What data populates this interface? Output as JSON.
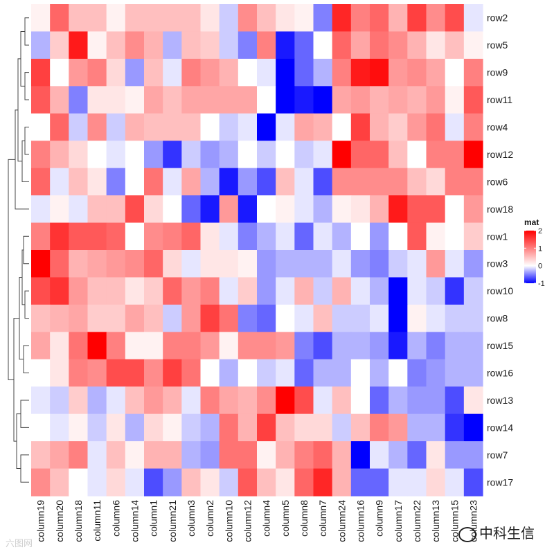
{
  "chart_data": {
    "type": "heatmap",
    "rows": [
      "row2",
      "row5",
      "row9",
      "row11",
      "row4",
      "row12",
      "row6",
      "row18",
      "row1",
      "row3",
      "row10",
      "row8",
      "row15",
      "row16",
      "row13",
      "row14",
      "row7",
      "row17"
    ],
    "columns": [
      "column19",
      "column20",
      "column18",
      "column11",
      "column6",
      "column14",
      "column1",
      "column21",
      "column3",
      "column2",
      "column10",
      "column12",
      "column4",
      "column5",
      "column8",
      "column7",
      "column24",
      "column16",
      "column9",
      "column17",
      "column22",
      "column13",
      "column15",
      "column23"
    ],
    "values": [
      [
        0.1,
        1.2,
        0.5,
        0.5,
        0.1,
        0.5,
        0.5,
        0.5,
        0.5,
        0.2,
        -0.2,
        0.9,
        0.5,
        0.2,
        0.1,
        -0.5,
        1.7,
        1.0,
        1.2,
        0.6,
        1.5,
        0.9,
        1.4,
        -0.1
      ],
      [
        -0.3,
        0.4,
        1.8,
        0.1,
        0.5,
        0.9,
        0.6,
        -0.3,
        0.5,
        0.4,
        -0.2,
        -0.5,
        1.0,
        -0.9,
        -0.6,
        0.0,
        1.2,
        0.7,
        1.1,
        0.9,
        0.6,
        0.2,
        0.5,
        0.1
      ],
      [
        1.5,
        0.0,
        0.8,
        1.0,
        0.3,
        -0.4,
        0.5,
        -0.1,
        1.0,
        0.8,
        0.6,
        0.0,
        -0.1,
        -1.0,
        -0.6,
        -0.3,
        1.0,
        1.8,
        1.9,
        0.8,
        0.9,
        0.7,
        0.0,
        1.0
      ],
      [
        1.3,
        0.6,
        -0.5,
        0.2,
        0.2,
        0.1,
        0.7,
        0.5,
        0.7,
        0.7,
        0.7,
        0.7,
        0.0,
        -1.6,
        -0.9,
        -1.3,
        0.7,
        0.8,
        0.6,
        0.7,
        0.6,
        0.8,
        0.1,
        1.3
      ],
      [
        0.0,
        1.2,
        -0.2,
        0.9,
        -0.2,
        0.6,
        0.5,
        0.5,
        0.5,
        0.0,
        -0.2,
        -0.1,
        -1.5,
        -0.1,
        0.7,
        0.6,
        0.0,
        1.5,
        0.6,
        0.4,
        0.8,
        1.1,
        -0.1,
        1.0
      ],
      [
        1.0,
        0.6,
        0.3,
        0.0,
        -0.1,
        0.0,
        -0.4,
        -0.8,
        -0.2,
        -0.4,
        -0.3,
        0.0,
        -0.2,
        0.0,
        -0.2,
        -0.1,
        2.0,
        1.2,
        1.2,
        0.5,
        0.0,
        1.0,
        1.0,
        2.0
      ],
      [
        1.2,
        -0.1,
        0.5,
        0.2,
        -0.5,
        0.0,
        1.1,
        -0.1,
        0.7,
        -0.3,
        -0.9,
        -0.4,
        -0.7,
        0.5,
        -0.1,
        -0.7,
        0.9,
        0.9,
        0.9,
        0.9,
        0.5,
        0.3,
        1.0,
        1.0
      ],
      [
        -0.1,
        0.1,
        -0.1,
        0.5,
        0.5,
        1.4,
        0.3,
        0.0,
        -0.6,
        -0.9,
        0.8,
        -0.9,
        0.0,
        0.1,
        -0.1,
        -0.3,
        0.1,
        0.2,
        0.6,
        1.8,
        1.3,
        1.3,
        0.0,
        0.8
      ],
      [
        1.0,
        1.6,
        1.3,
        1.3,
        1.2,
        0.0,
        0.9,
        1.0,
        1.2,
        0.2,
        -0.1,
        -0.5,
        -0.3,
        -0.1,
        -0.6,
        -0.1,
        -0.3,
        0.0,
        -0.4,
        0.0,
        1.3,
        0.1,
        0.0,
        0.4
      ],
      [
        2.0,
        1.2,
        0.6,
        0.7,
        0.8,
        0.9,
        1.2,
        0.3,
        -0.1,
        0.2,
        0.2,
        0.1,
        -0.4,
        -0.3,
        -0.3,
        -0.3,
        -0.1,
        -0.4,
        -0.5,
        -0.2,
        -0.1,
        0.8,
        -0.1,
        -0.4
      ],
      [
        1.4,
        1.6,
        0.8,
        0.5,
        0.5,
        0.2,
        0.4,
        1.2,
        0.8,
        1.0,
        -0.1,
        0.4,
        -0.4,
        -0.1,
        0.6,
        -0.2,
        0.6,
        -0.1,
        -0.3,
        -1.6,
        -0.1,
        -0.2,
        -0.8,
        -0.2
      ],
      [
        0.5,
        0.6,
        0.7,
        0.4,
        0.4,
        0.7,
        0.5,
        -0.2,
        0.8,
        1.5,
        1.1,
        -0.5,
        -0.6,
        0.0,
        -0.1,
        0.5,
        -0.2,
        -0.2,
        -0.1,
        -1.6,
        0.1,
        -0.1,
        -0.2,
        -0.2
      ],
      [
        0.7,
        0.2,
        1.1,
        2.0,
        1.0,
        0.1,
        0.1,
        1.0,
        1.0,
        0.8,
        0.1,
        0.9,
        0.9,
        0.8,
        -0.5,
        -0.7,
        -0.3,
        -0.3,
        -0.4,
        -0.9,
        -0.3,
        -0.5,
        -0.3,
        -0.3
      ],
      [
        0.0,
        0.2,
        1.0,
        0.9,
        1.4,
        1.4,
        0.9,
        1.5,
        1.1,
        0.0,
        -0.3,
        0.0,
        -0.2,
        -0.1,
        -0.6,
        -0.3,
        -0.3,
        0.0,
        -0.3,
        0.0,
        -0.5,
        -0.4,
        -0.3,
        -0.3
      ],
      [
        -0.1,
        -0.2,
        0.4,
        -0.3,
        -0.1,
        0.5,
        0.8,
        0.6,
        -0.1,
        1.0,
        0.7,
        0.6,
        0.9,
        2.0,
        1.4,
        -0.1,
        0.5,
        0.0,
        -0.6,
        -0.3,
        -0.4,
        -0.4,
        -0.7,
        0.2
      ],
      [
        0.0,
        -0.1,
        0.1,
        -0.2,
        0.2,
        -0.3,
        0.3,
        0.1,
        -0.2,
        -0.3,
        1.1,
        0.6,
        1.5,
        0.5,
        0.3,
        0.3,
        -0.2,
        0.5,
        1.0,
        0.8,
        -0.3,
        -0.3,
        -0.8,
        -1.0
      ],
      [
        0.5,
        0.7,
        1.0,
        -0.1,
        0.5,
        0.1,
        0.6,
        0.6,
        -0.3,
        -0.4,
        1.1,
        1.1,
        0.1,
        0.6,
        1.0,
        1.2,
        0.6,
        -1.5,
        -0.1,
        -0.3,
        -0.6,
        0.2,
        -0.4,
        -0.4
      ],
      [
        0.9,
        0.5,
        0.0,
        -0.1,
        0.3,
        -0.1,
        -0.7,
        -0.4,
        0.5,
        0.2,
        -0.2,
        1.3,
        0.5,
        0.2,
        1.2,
        1.7,
        0.6,
        -0.6,
        -0.6,
        -0.1,
        -0.1,
        0.3,
        -0.1,
        -0.7
      ]
    ],
    "colors": {
      "low": "#0000ff",
      "mid": "#ffffff",
      "high": "#ff0000"
    },
    "color_range": [
      -1,
      2
    ],
    "legend": {
      "title": "mat",
      "ticks": [
        "2",
        "1",
        "0",
        "-1"
      ],
      "tick_values": [
        2,
        1,
        0,
        -1
      ],
      "placement": "right"
    },
    "row_dendrogram": true,
    "row_dendrogram_side": "left"
  },
  "watermarks": {
    "left": "六图网",
    "right": "中科生信"
  }
}
